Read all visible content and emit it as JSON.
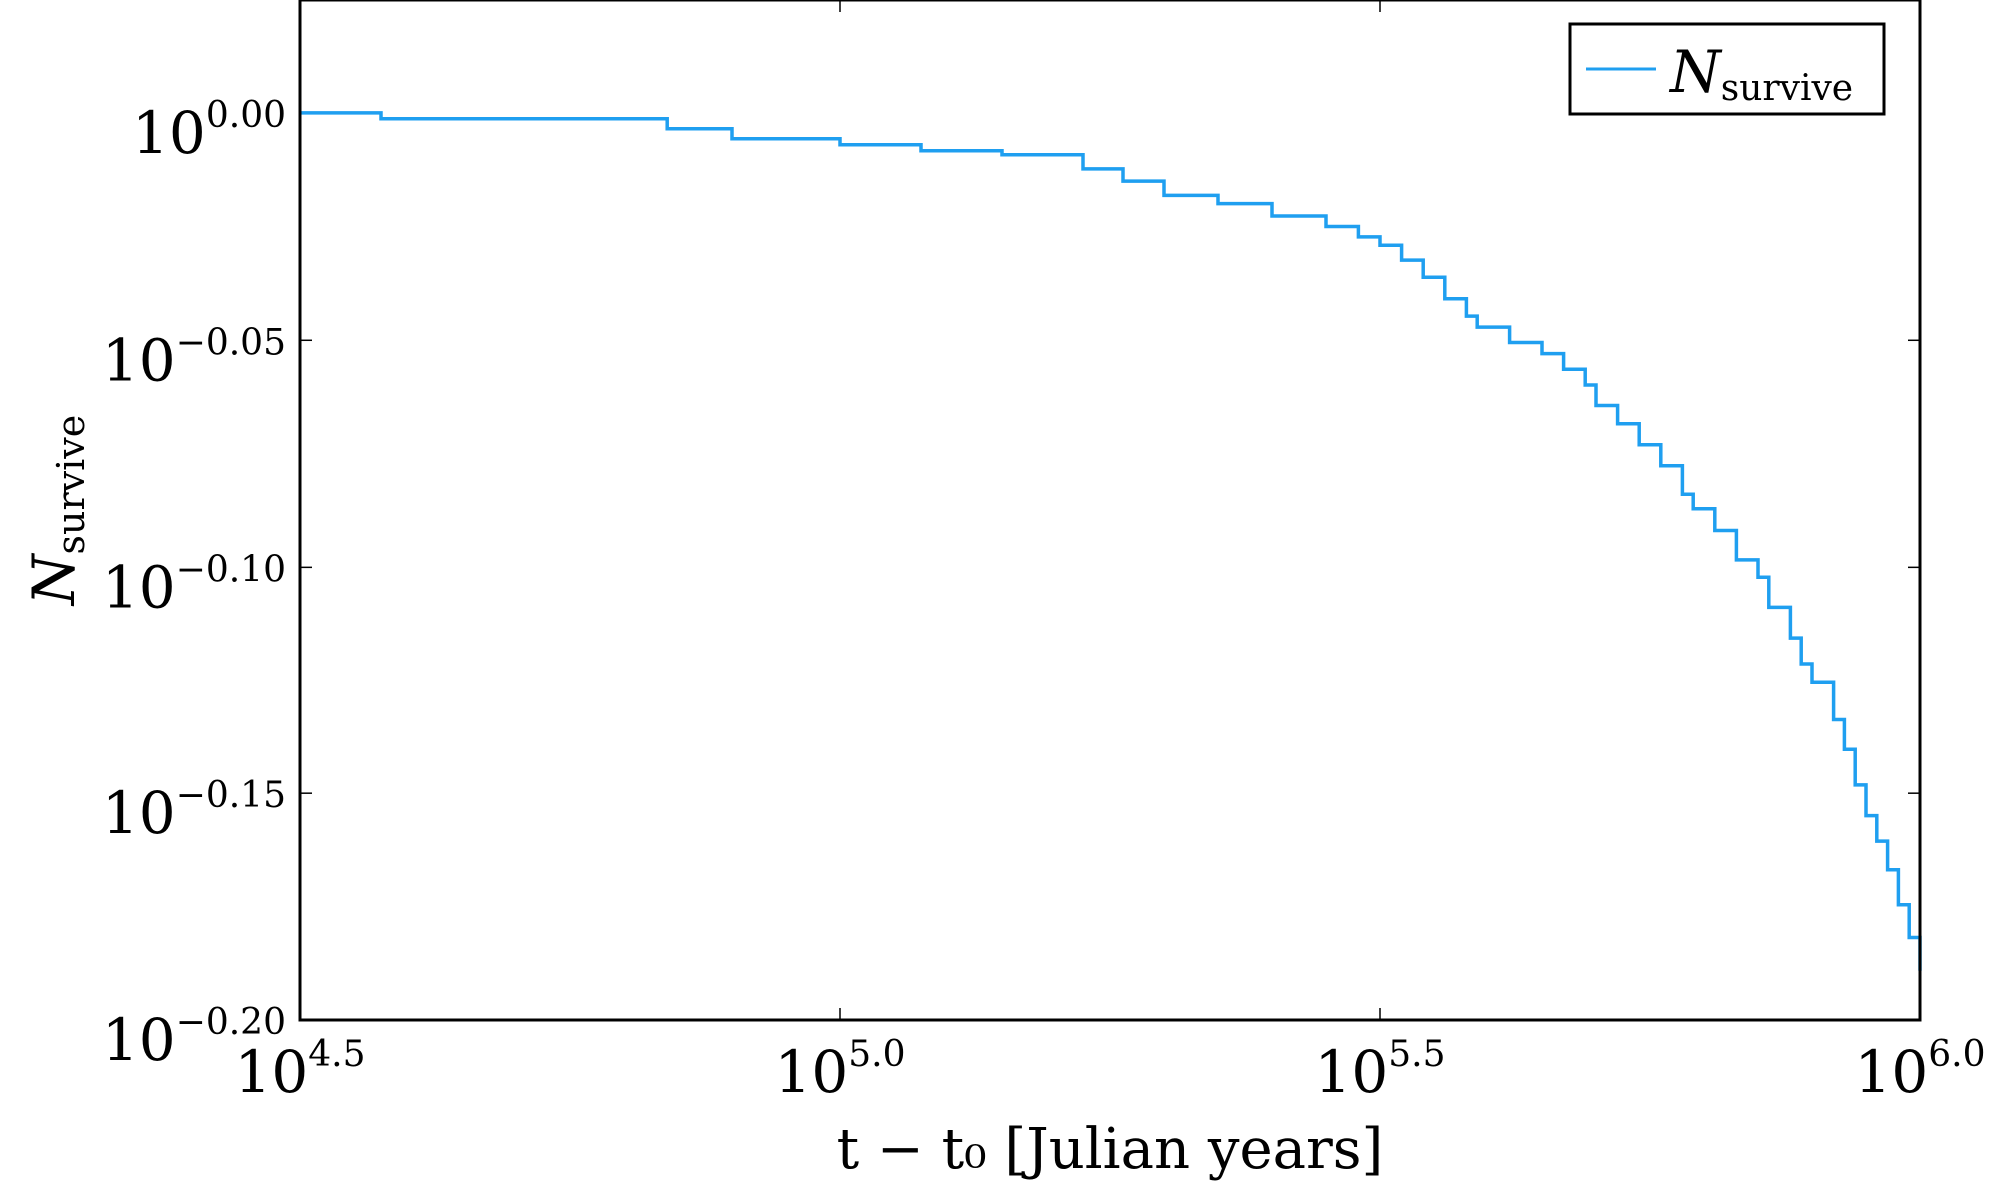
{
  "chart_data": {
    "type": "line",
    "line_style": "step",
    "xlabel": "t − t₀ [Julian years]",
    "ylabel": "N",
    "ylabel_subscript": "survive",
    "x_scale": "log10",
    "y_scale": "log10",
    "xlim": [
      31623,
      1000000
    ],
    "ylim": [
      0.631,
      1.059
    ],
    "x_ticks": [
      {
        "base": "10",
        "exp": "4.5",
        "value": 31623
      },
      {
        "base": "10",
        "exp": "5.0",
        "value": 100000
      },
      {
        "base": "10",
        "exp": "5.5",
        "value": 316228
      },
      {
        "base": "10",
        "exp": "6.0",
        "value": 1000000
      }
    ],
    "y_ticks": [
      {
        "base": "10",
        "exp": "0.00",
        "value": 1.0
      },
      {
        "base": "10",
        "exp": "−0.05",
        "value": 0.891
      },
      {
        "base": "10",
        "exp": "−0.10",
        "value": 0.794
      },
      {
        "base": "10",
        "exp": "−0.15",
        "value": 0.708
      },
      {
        "base": "10",
        "exp": "−0.20",
        "value": 0.631
      }
    ],
    "grid": false,
    "legend_position": "top-right",
    "series": [
      {
        "name": "N",
        "name_subscript": "survive",
        "color": "#1f9ff0",
        "x": [
          31623,
          37584,
          69183,
          79433,
          100000,
          118850,
          141254,
          167880,
          182810,
          199526,
          223872,
          251189,
          281838,
          301995,
          316228,
          331131,
          346737,
          363078,
          380189,
          389045,
          416869,
          446684,
          467735,
          489779,
          501187,
          524807,
          549541,
          575440,
          602560,
          616595,
          645654,
          676083,
          707946,
          724436,
          758578,
          776247,
          794328,
          831764,
          851138,
          870964,
          891251,
          912011,
          933254,
          954993,
          977237,
          1000000
        ],
        "y": [
          1.0,
          0.997,
          0.992,
          0.987,
          0.984,
          0.981,
          0.979,
          0.972,
          0.966,
          0.959,
          0.955,
          0.949,
          0.944,
          0.939,
          0.935,
          0.928,
          0.92,
          0.91,
          0.902,
          0.897,
          0.89,
          0.885,
          0.878,
          0.871,
          0.862,
          0.854,
          0.845,
          0.836,
          0.824,
          0.818,
          0.809,
          0.797,
          0.79,
          0.778,
          0.766,
          0.756,
          0.749,
          0.735,
          0.724,
          0.711,
          0.7,
          0.691,
          0.681,
          0.669,
          0.658,
          0.647
        ]
      }
    ]
  }
}
